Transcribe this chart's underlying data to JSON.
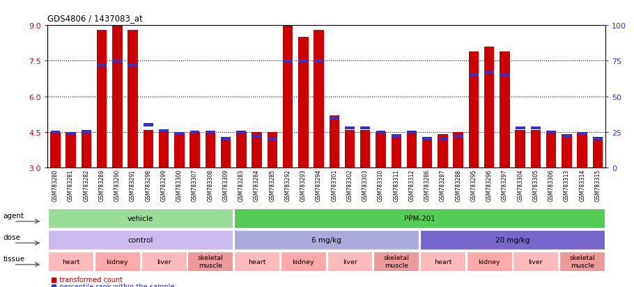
{
  "title": "GDS4806 / 1437083_at",
  "samples": [
    "GSM783280",
    "GSM783281",
    "GSM783282",
    "GSM783289",
    "GSM783290",
    "GSM783291",
    "GSM783298",
    "GSM783299",
    "GSM783300",
    "GSM783307",
    "GSM783308",
    "GSM783309",
    "GSM783283",
    "GSM783284",
    "GSM783285",
    "GSM783292",
    "GSM783293",
    "GSM783294",
    "GSM783301",
    "GSM783302",
    "GSM783303",
    "GSM783310",
    "GSM783311",
    "GSM783312",
    "GSM783286",
    "GSM783287",
    "GSM783288",
    "GSM783295",
    "GSM783296",
    "GSM783297",
    "GSM783304",
    "GSM783305",
    "GSM783306",
    "GSM783313",
    "GSM783314",
    "GSM783315"
  ],
  "transformed_count": [
    4.5,
    4.5,
    4.6,
    8.8,
    9.0,
    8.8,
    4.6,
    4.5,
    4.5,
    4.5,
    4.5,
    4.3,
    4.5,
    4.5,
    4.5,
    9.0,
    8.5,
    8.8,
    5.2,
    4.6,
    4.6,
    4.5,
    4.4,
    4.5,
    4.3,
    4.4,
    4.5,
    7.9,
    8.1,
    7.9,
    4.6,
    4.6,
    4.5,
    4.4,
    4.5,
    4.3
  ],
  "percentile_rank": [
    25,
    24,
    25,
    72,
    75,
    72,
    30,
    26,
    24,
    25,
    25,
    20,
    25,
    22,
    20,
    75,
    75,
    75,
    35,
    28,
    28,
    25,
    22,
    25,
    20,
    20,
    22,
    65,
    67,
    65,
    28,
    28,
    25,
    22,
    24,
    20
  ],
  "ymin": 3.0,
  "ymax": 9.0,
  "yticks_left": [
    3,
    4.5,
    6,
    7.5,
    9
  ],
  "yticks_right": [
    0,
    25,
    50,
    75,
    100
  ],
  "bar_color": "#cc0000",
  "percentile_color": "#3333cc",
  "chart_bg": "#ffffff",
  "agent_groups": [
    {
      "label": "vehicle",
      "start": 0,
      "end": 12,
      "color": "#99dd99"
    },
    {
      "label": "PPM-201",
      "start": 12,
      "end": 36,
      "color": "#55cc55"
    }
  ],
  "dose_groups": [
    {
      "label": "control",
      "start": 0,
      "end": 12,
      "color": "#ccbbee"
    },
    {
      "label": "6 mg/kg",
      "start": 12,
      "end": 24,
      "color": "#aaaadd"
    },
    {
      "label": "20 mg/kg",
      "start": 24,
      "end": 36,
      "color": "#7766cc"
    }
  ],
  "tissue_groups": [
    {
      "label": "heart",
      "start": 0,
      "end": 3,
      "color": "#ffbbbb"
    },
    {
      "label": "kidney",
      "start": 3,
      "end": 6,
      "color": "#ffaaaa"
    },
    {
      "label": "liver",
      "start": 6,
      "end": 9,
      "color": "#ffbbbb"
    },
    {
      "label": "skeletal\nmuscle",
      "start": 9,
      "end": 12,
      "color": "#ee9999"
    },
    {
      "label": "heart",
      "start": 12,
      "end": 15,
      "color": "#ffbbbb"
    },
    {
      "label": "kidney",
      "start": 15,
      "end": 18,
      "color": "#ffaaaa"
    },
    {
      "label": "liver",
      "start": 18,
      "end": 21,
      "color": "#ffbbbb"
    },
    {
      "label": "skeletal\nmuscle",
      "start": 21,
      "end": 24,
      "color": "#ee9999"
    },
    {
      "label": "heart",
      "start": 24,
      "end": 27,
      "color": "#ffbbbb"
    },
    {
      "label": "kidney",
      "start": 27,
      "end": 30,
      "color": "#ffaaaa"
    },
    {
      "label": "liver",
      "start": 30,
      "end": 33,
      "color": "#ffbbbb"
    },
    {
      "label": "skeletal\nmuscle",
      "start": 33,
      "end": 36,
      "color": "#ee9999"
    }
  ],
  "legend_items": [
    {
      "label": "transformed count",
      "color": "#cc0000"
    },
    {
      "label": "percentile rank within the sample",
      "color": "#3333cc"
    }
  ]
}
